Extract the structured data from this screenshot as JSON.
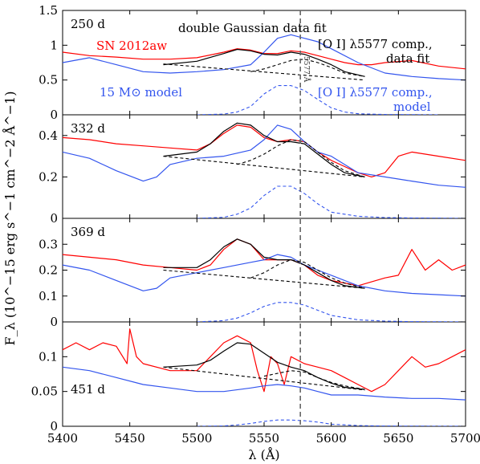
{
  "chart_data": {
    "type": "line",
    "xlabel": "λ (Å)",
    "ylabel": "F_λ (10^−15 erg s^−1 cm^−2 Å^−1)",
    "xlim": [
      5400,
      5700
    ],
    "xticks": [
      5400,
      5450,
      5500,
      5550,
      5600,
      5650,
      5700
    ],
    "vline": {
      "x": 5577,
      "label": "5577 Å"
    },
    "legend": {
      "observed": "SN 2012aw",
      "model": "15 M⊙ model",
      "fit": "double Gaussian data fit",
      "oi_fit_line1": "[O I] λ5577 comp.,",
      "oi_fit_line2": "data fit",
      "oi_model_line1": "[O I] λ5577 comp.,",
      "oi_model_line2": "model"
    },
    "panels": [
      {
        "epoch": "250 d",
        "ylim": [
          0,
          1.5
        ],
        "yticks": [
          0,
          0.5,
          1,
          1.5
        ],
        "series": [
          {
            "name": "SN 2012aw",
            "color": "#ff0000",
            "style": "solid",
            "x": [
              5400,
              5420,
              5440,
              5460,
              5480,
              5500,
              5520,
              5530,
              5540,
              5550,
              5560,
              5570,
              5580,
              5590,
              5600,
              5610,
              5620,
              5630,
              5640,
              5660,
              5680,
              5700
            ],
            "y": [
              0.9,
              0.85,
              0.83,
              0.8,
              0.8,
              0.82,
              0.9,
              0.95,
              0.93,
              0.88,
              0.88,
              0.92,
              0.9,
              0.85,
              0.8,
              0.75,
              0.72,
              0.72,
              0.75,
              0.78,
              0.7,
              0.66
            ]
          },
          {
            "name": "15 M⊙ model",
            "color": "#3355ee",
            "style": "solid",
            "x": [
              5400,
              5420,
              5440,
              5460,
              5480,
              5500,
              5520,
              5540,
              5550,
              5560,
              5570,
              5580,
              5590,
              5600,
              5620,
              5640,
              5660,
              5680,
              5700
            ],
            "y": [
              0.75,
              0.82,
              0.72,
              0.62,
              0.6,
              0.62,
              0.65,
              0.72,
              0.9,
              1.1,
              1.15,
              1.1,
              1.05,
              0.95,
              0.75,
              0.6,
              0.55,
              0.52,
              0.5
            ]
          },
          {
            "name": "double Gaussian data fit",
            "color": "#000000",
            "style": "solid",
            "x": [
              5475,
              5500,
              5520,
              5530,
              5540,
              5550,
              5560,
              5570,
              5580,
              5590,
              5600,
              5610,
              5625
            ],
            "y": [
              0.72,
              0.77,
              0.88,
              0.94,
              0.92,
              0.87,
              0.86,
              0.9,
              0.87,
              0.8,
              0.72,
              0.62,
              0.55
            ]
          },
          {
            "name": "[O I] λ5577 comp., data fit",
            "color": "#000000",
            "style": "dashed",
            "x": [
              5540,
              5550,
              5560,
              5570,
              5580,
              5590,
              5600,
              5610,
              5625
            ],
            "y": [
              0.62,
              0.66,
              0.72,
              0.78,
              0.8,
              0.75,
              0.68,
              0.6,
              0.55
            ]
          },
          {
            "name": "continuum",
            "color": "#000000",
            "style": "dashed",
            "x": [
              5475,
              5625
            ],
            "y": [
              0.73,
              0.5
            ]
          },
          {
            "name": "[O I] λ5577 comp., model",
            "color": "#3355ee",
            "style": "dashed",
            "x": [
              5500,
              5520,
              5530,
              5540,
              5550,
              5560,
              5570,
              5580,
              5590,
              5600,
              5610,
              5620,
              5640,
              5660,
              5680
            ],
            "y": [
              0,
              0.01,
              0.04,
              0.12,
              0.3,
              0.42,
              0.42,
              0.35,
              0.22,
              0.1,
              0.04,
              0.015,
              0.005,
              0.002,
              0
            ]
          }
        ]
      },
      {
        "epoch": "332 d",
        "ylim": [
          0,
          0.5
        ],
        "yticks": [
          0,
          0.2,
          0.4
        ],
        "series": [
          {
            "name": "SN 2012aw",
            "color": "#ff0000",
            "style": "solid",
            "x": [
              5400,
              5420,
              5440,
              5460,
              5480,
              5500,
              5510,
              5520,
              5530,
              5540,
              5550,
              5560,
              5570,
              5580,
              5590,
              5600,
              5610,
              5620,
              5630,
              5640,
              5650,
              5660,
              5680,
              5700
            ],
            "y": [
              0.39,
              0.38,
              0.36,
              0.35,
              0.34,
              0.33,
              0.36,
              0.41,
              0.45,
              0.44,
              0.39,
              0.37,
              0.38,
              0.37,
              0.32,
              0.28,
              0.25,
              0.22,
              0.2,
              0.22,
              0.3,
              0.32,
              0.3,
              0.28
            ]
          },
          {
            "name": "15 M⊙ model",
            "color": "#3355ee",
            "style": "solid",
            "x": [
              5400,
              5420,
              5440,
              5460,
              5470,
              5480,
              5500,
              5520,
              5540,
              5550,
              5560,
              5570,
              5580,
              5590,
              5600,
              5620,
              5640,
              5660,
              5680,
              5700
            ],
            "y": [
              0.32,
              0.29,
              0.23,
              0.18,
              0.2,
              0.26,
              0.29,
              0.3,
              0.33,
              0.38,
              0.45,
              0.43,
              0.37,
              0.32,
              0.3,
              0.22,
              0.2,
              0.18,
              0.16,
              0.15
            ]
          },
          {
            "name": "double Gaussian data fit",
            "color": "#000000",
            "style": "solid",
            "x": [
              5475,
              5500,
              5510,
              5520,
              5530,
              5540,
              5550,
              5560,
              5570,
              5580,
              5590,
              5600,
              5610,
              5625
            ],
            "y": [
              0.3,
              0.32,
              0.36,
              0.42,
              0.46,
              0.45,
              0.4,
              0.37,
              0.37,
              0.36,
              0.31,
              0.26,
              0.22,
              0.2
            ]
          },
          {
            "name": "[O I] λ5577 comp., data fit",
            "color": "#000000",
            "style": "dashed",
            "x": [
              5530,
              5540,
              5550,
              5560,
              5570,
              5580,
              5590,
              5600,
              5610,
              5625
            ],
            "y": [
              0.26,
              0.28,
              0.31,
              0.35,
              0.38,
              0.37,
              0.32,
              0.27,
              0.23,
              0.2
            ]
          },
          {
            "name": "continuum",
            "color": "#000000",
            "style": "dashed",
            "x": [
              5475,
              5625
            ],
            "y": [
              0.3,
              0.2
            ]
          },
          {
            "name": "[O I] λ5577 comp., model",
            "color": "#3355ee",
            "style": "dashed",
            "x": [
              5500,
              5520,
              5530,
              5540,
              5550,
              5560,
              5570,
              5580,
              5590,
              5600,
              5620,
              5640,
              5660,
              5680,
              5700
            ],
            "y": [
              0,
              0.005,
              0.02,
              0.05,
              0.11,
              0.155,
              0.155,
              0.12,
              0.07,
              0.03,
              0.01,
              0.004,
              0.002,
              0.001,
              0
            ]
          }
        ]
      },
      {
        "epoch": "369 d",
        "ylim": [
          0,
          0.4
        ],
        "yticks": [
          0,
          0.1,
          0.2,
          0.3
        ],
        "series": [
          {
            "name": "SN 2012aw",
            "color": "#ff0000",
            "style": "solid",
            "x": [
              5400,
              5420,
              5440,
              5460,
              5480,
              5500,
              5510,
              5520,
              5530,
              5540,
              5550,
              5560,
              5570,
              5580,
              5590,
              5600,
              5610,
              5620,
              5640,
              5650,
              5660,
              5670,
              5680,
              5690,
              5700
            ],
            "y": [
              0.26,
              0.25,
              0.24,
              0.22,
              0.21,
              0.2,
              0.22,
              0.28,
              0.32,
              0.3,
              0.24,
              0.24,
              0.24,
              0.22,
              0.18,
              0.16,
              0.15,
              0.14,
              0.17,
              0.18,
              0.28,
              0.2,
              0.24,
              0.2,
              0.22
            ]
          },
          {
            "name": "15 M⊙ model",
            "color": "#3355ee",
            "style": "solid",
            "x": [
              5400,
              5420,
              5440,
              5460,
              5470,
              5480,
              5500,
              5520,
              5540,
              5550,
              5560,
              5570,
              5580,
              5590,
              5600,
              5620,
              5640,
              5660,
              5680,
              5700
            ],
            "y": [
              0.22,
              0.2,
              0.16,
              0.12,
              0.13,
              0.17,
              0.19,
              0.21,
              0.23,
              0.24,
              0.26,
              0.25,
              0.22,
              0.2,
              0.18,
              0.14,
              0.12,
              0.11,
              0.105,
              0.1
            ]
          },
          {
            "name": "double Gaussian data fit",
            "color": "#000000",
            "style": "solid",
            "x": [
              5475,
              5500,
              5510,
              5520,
              5530,
              5540,
              5550,
              5560,
              5570,
              5580,
              5590,
              5600,
              5610,
              5625
            ],
            "y": [
              0.21,
              0.21,
              0.24,
              0.29,
              0.32,
              0.3,
              0.25,
              0.24,
              0.24,
              0.22,
              0.19,
              0.16,
              0.14,
              0.13
            ]
          },
          {
            "name": "[O I] λ5577 comp., data fit",
            "color": "#000000",
            "style": "dashed",
            "x": [
              5540,
              5550,
              5560,
              5570,
              5580,
              5590,
              5600,
              5610,
              5625
            ],
            "y": [
              0.17,
              0.19,
              0.22,
              0.24,
              0.23,
              0.2,
              0.17,
              0.15,
              0.13
            ]
          },
          {
            "name": "continuum",
            "color": "#000000",
            "style": "dashed",
            "x": [
              5475,
              5625
            ],
            "y": [
              0.2,
              0.13
            ]
          },
          {
            "name": "[O I] λ5577 comp., model",
            "color": "#3355ee",
            "style": "dashed",
            "x": [
              5500,
              5520,
              5530,
              5540,
              5550,
              5560,
              5570,
              5580,
              5590,
              5600,
              5620,
              5640,
              5660,
              5680,
              5700
            ],
            "y": [
              0,
              0.005,
              0.015,
              0.035,
              0.06,
              0.075,
              0.075,
              0.065,
              0.045,
              0.025,
              0.008,
              0.003,
              0.001,
              0.0005,
              0
            ]
          }
        ]
      },
      {
        "epoch": "451 d",
        "ylim": [
          0,
          0.15
        ],
        "yticks": [
          0,
          0.05,
          0.1
        ],
        "series": [
          {
            "name": "SN 2012aw",
            "color": "#ff0000",
            "style": "solid",
            "x": [
              5400,
              5410,
              5420,
              5430,
              5440,
              5448,
              5450,
              5455,
              5460,
              5480,
              5500,
              5510,
              5520,
              5530,
              5540,
              5545,
              5550,
              5555,
              5560,
              5565,
              5570,
              5580,
              5590,
              5600,
              5610,
              5620,
              5630,
              5640,
              5650,
              5660,
              5670,
              5680,
              5690,
              5700
            ],
            "y": [
              0.11,
              0.12,
              0.11,
              0.12,
              0.115,
              0.09,
              0.14,
              0.1,
              0.09,
              0.08,
              0.08,
              0.1,
              0.12,
              0.13,
              0.12,
              0.08,
              0.05,
              0.1,
              0.09,
              0.06,
              0.1,
              0.09,
              0.085,
              0.08,
              0.07,
              0.06,
              0.05,
              0.06,
              0.08,
              0.1,
              0.085,
              0.09,
              0.1,
              0.11
            ]
          },
          {
            "name": "15 M⊙ model",
            "color": "#3355ee",
            "style": "solid",
            "x": [
              5400,
              5420,
              5440,
              5460,
              5480,
              5500,
              5520,
              5540,
              5550,
              5560,
              5570,
              5580,
              5590,
              5600,
              5620,
              5640,
              5660,
              5680,
              5700
            ],
            "y": [
              0.085,
              0.08,
              0.07,
              0.06,
              0.055,
              0.05,
              0.05,
              0.055,
              0.058,
              0.06,
              0.058,
              0.055,
              0.05,
              0.045,
              0.045,
              0.042,
              0.04,
              0.04,
              0.038
            ]
          },
          {
            "name": "double Gaussian data fit",
            "color": "#000000",
            "style": "solid",
            "x": [
              5475,
              5500,
              5510,
              5520,
              5530,
              5540,
              5550,
              5560,
              5570,
              5580,
              5590,
              5600,
              5610,
              5625
            ],
            "y": [
              0.085,
              0.088,
              0.095,
              0.108,
              0.12,
              0.118,
              0.105,
              0.092,
              0.085,
              0.08,
              0.07,
              0.062,
              0.056,
              0.053
            ]
          },
          {
            "name": "[O I] λ5577 comp., data fit",
            "color": "#000000",
            "style": "dashed",
            "x": [
              5550,
              5560,
              5570,
              5580,
              5590,
              5600,
              5610,
              5625
            ],
            "y": [
              0.072,
              0.076,
              0.08,
              0.078,
              0.07,
              0.063,
              0.058,
              0.053
            ]
          },
          {
            "name": "continuum",
            "color": "#000000",
            "style": "dashed",
            "x": [
              5475,
              5625
            ],
            "y": [
              0.085,
              0.052
            ]
          },
          {
            "name": "[O I] λ5577 comp., model",
            "color": "#3355ee",
            "style": "dashed",
            "x": [
              5500,
              5520,
              5530,
              5540,
              5550,
              5560,
              5570,
              5580,
              5590,
              5600,
              5620,
              5640,
              5660,
              5680,
              5700
            ],
            "y": [
              0,
              0.0005,
              0.002,
              0.004,
              0.007,
              0.009,
              0.009,
              0.008,
              0.006,
              0.003,
              0.001,
              0.0004,
              0.0002,
              0.0001,
              0
            ]
          }
        ]
      }
    ]
  }
}
